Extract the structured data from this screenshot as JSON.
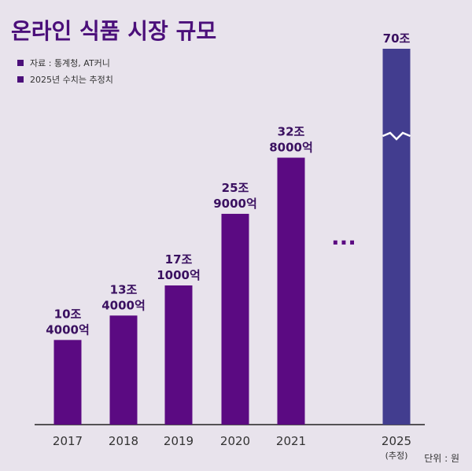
{
  "title": "온라인 식품 시장 규모",
  "notes": [
    "자료 : 통계청, AT커니",
    "2025년 수치는 추정치"
  ],
  "unit": "단위 : 원",
  "ellipsis": "···",
  "colors": {
    "bar": "#5b0a82",
    "bar_estimate": "#423d8f",
    "title": "#4b0f7a",
    "background": "#e8e3ec"
  },
  "chart_data": {
    "type": "bar",
    "title": "온라인 식품 시장 규모",
    "categories": [
      "2017",
      "2018",
      "2019",
      "2020",
      "2021",
      "2025"
    ],
    "category_sublabels": [
      "",
      "",
      "",
      "",
      "",
      "(추정)"
    ],
    "values": [
      10.4,
      13.4,
      17.1,
      25.9,
      32.8,
      70
    ],
    "value_labels": [
      [
        "10조",
        "4000억"
      ],
      [
        "13조",
        "4000억"
      ],
      [
        "17조",
        "1000억"
      ],
      [
        "25조",
        "9000억"
      ],
      [
        "32조",
        "8000억"
      ],
      [
        "70조"
      ]
    ],
    "estimated": [
      false,
      false,
      false,
      false,
      false,
      true
    ],
    "axis_break": "2025 bar truncated (broken scale)",
    "xlabel": "",
    "ylabel": "",
    "grid": false
  }
}
